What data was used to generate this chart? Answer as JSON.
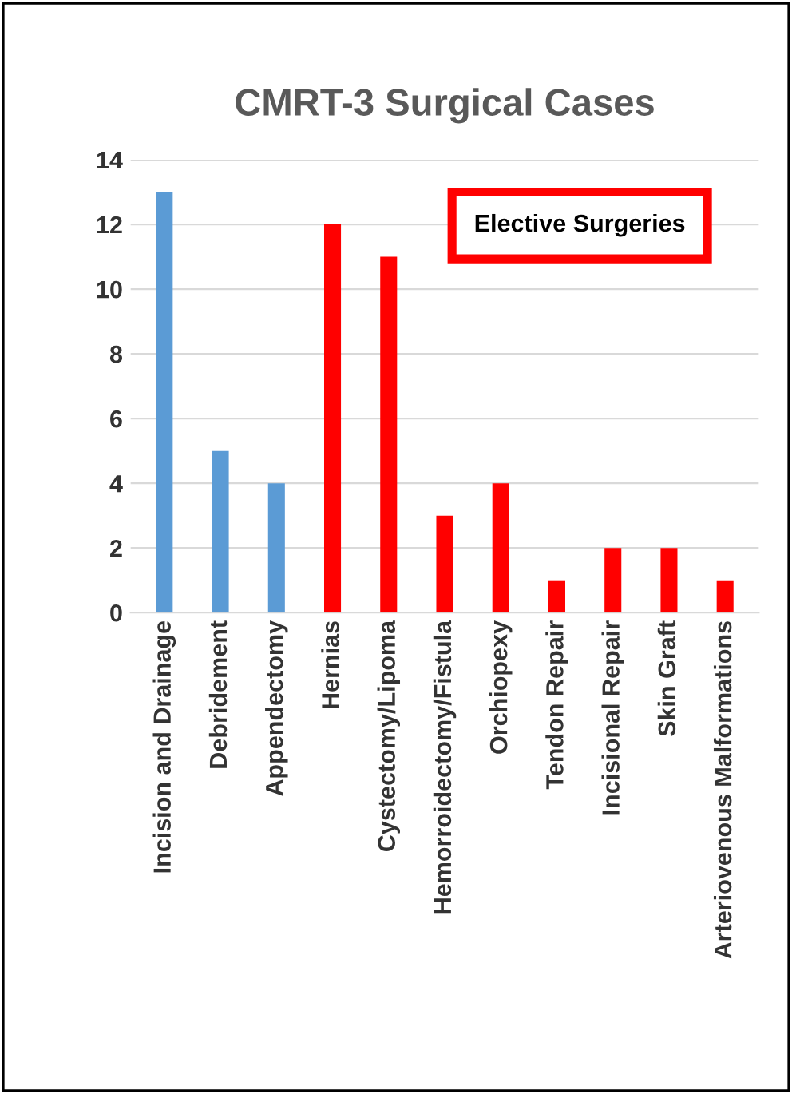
{
  "chart_data": {
    "type": "bar",
    "title": "CMRT-3 Surgical Cases",
    "categories": [
      "Incision and Drainage",
      "Debridement",
      "Appendectomy",
      "Hernias",
      "Cystectomy/Lipoma",
      "Hemorroidectomy/Fistula",
      "Orchiopexy",
      "Tendon Repair",
      "Incisional Repair",
      "Skin Graft",
      "Arteriovenous Malformations"
    ],
    "values": [
      13,
      5,
      4,
      12,
      11,
      3,
      4,
      1,
      2,
      2,
      1
    ],
    "colors": [
      "#5b9bd5",
      "#5b9bd5",
      "#5b9bd5",
      "#ff0000",
      "#ff0000",
      "#ff0000",
      "#ff0000",
      "#ff0000",
      "#ff0000",
      "#ff0000",
      "#ff0000"
    ],
    "ylim": [
      0,
      14
    ],
    "yticks": [
      0,
      2,
      4,
      6,
      8,
      10,
      12,
      14
    ],
    "grid": "y",
    "annotations": [
      "Elective Surgeries"
    ]
  }
}
